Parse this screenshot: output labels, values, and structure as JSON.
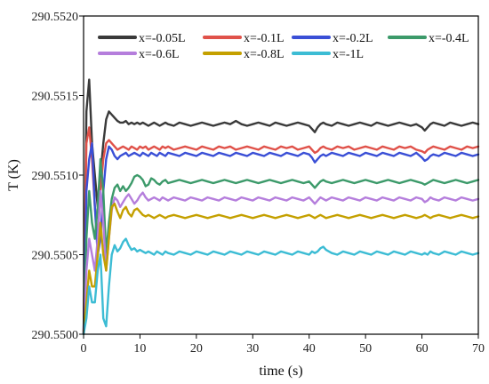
{
  "chart_data": {
    "type": "line",
    "xlabel": "time (s)",
    "ylabel": "T (K)",
    "xlim": [
      0,
      70
    ],
    "ylim": [
      290.55,
      290.552
    ],
    "x_ticks": [
      0,
      10,
      20,
      30,
      40,
      50,
      60,
      70
    ],
    "y_ticks": [
      "290.5500",
      "290.5505",
      "290.5510",
      "290.5515",
      "290.5520"
    ],
    "legend_position": "top",
    "grid": false,
    "x": [
      0,
      0.5,
      1,
      1.5,
      2,
      2.5,
      3,
      3.5,
      4,
      4.5,
      5,
      5.5,
      6,
      6.5,
      7,
      7.5,
      8,
      8.5,
      9,
      9.5,
      10,
      10.5,
      11,
      11.5,
      12,
      12.5,
      13,
      13.5,
      14,
      14.5,
      15,
      16,
      17,
      18,
      19,
      20,
      21,
      22,
      23,
      24,
      25,
      26,
      27,
      28,
      29,
      30,
      31,
      32,
      33,
      34,
      35,
      36,
      37,
      38,
      39,
      40,
      40.5,
      41,
      41.5,
      42,
      42.5,
      43,
      44,
      45,
      46,
      47,
      48,
      49,
      50,
      51,
      52,
      53,
      54,
      55,
      56,
      57,
      58,
      59,
      60,
      60.5,
      61,
      61.5,
      62,
      63,
      64,
      65,
      66,
      67,
      68,
      69,
      70
    ],
    "series": [
      {
        "name": "x=-0.05L",
        "color": "#3a3a3a",
        "values": [
          290.55,
          290.5514,
          290.5516,
          290.5512,
          290.551,
          290.5508,
          290.551,
          290.5512,
          290.55135,
          290.5514,
          290.55138,
          290.55136,
          290.55134,
          290.55133,
          290.55133,
          290.55134,
          290.55132,
          290.55133,
          290.55132,
          290.55133,
          290.55132,
          290.55133,
          290.55132,
          290.55131,
          290.55132,
          290.55133,
          290.55132,
          290.55131,
          290.55132,
          290.55133,
          290.55132,
          290.55131,
          290.55133,
          290.55132,
          290.55131,
          290.55132,
          290.55133,
          290.55132,
          290.55131,
          290.55132,
          290.55133,
          290.55132,
          290.55134,
          290.55132,
          290.55131,
          290.55132,
          290.55133,
          290.55132,
          290.55131,
          290.55133,
          290.55132,
          290.55131,
          290.55132,
          290.55133,
          290.55132,
          290.55131,
          290.55129,
          290.55127,
          290.5513,
          290.55132,
          290.55133,
          290.55132,
          290.55131,
          290.55133,
          290.55132,
          290.55131,
          290.55132,
          290.55133,
          290.55132,
          290.55131,
          290.55133,
          290.55132,
          290.55131,
          290.55132,
          290.55133,
          290.55132,
          290.55131,
          290.55132,
          290.5513,
          290.55128,
          290.5513,
          290.55132,
          290.55133,
          290.55132,
          290.55131,
          290.55133,
          290.55132,
          290.55131,
          290.55132,
          290.55133,
          290.55132
        ]
      },
      {
        "name": "x=-0.1L",
        "color": "#e0524a",
        "values": [
          290.55,
          290.5512,
          290.5513,
          290.5511,
          290.5508,
          290.5506,
          290.5509,
          290.5511,
          290.5512,
          290.55122,
          290.5512,
          290.55118,
          290.55116,
          290.55117,
          290.55118,
          290.55117,
          290.55116,
          290.55118,
          290.55117,
          290.55116,
          290.55118,
          290.55117,
          290.55118,
          290.55116,
          290.55117,
          290.55118,
          290.55117,
          290.55116,
          290.55118,
          290.55117,
          290.55118,
          290.55116,
          290.55117,
          290.55118,
          290.55117,
          290.55116,
          290.55118,
          290.55117,
          290.55116,
          290.55118,
          290.55117,
          290.55118,
          290.55116,
          290.55117,
          290.55118,
          290.55117,
          290.55116,
          290.55118,
          290.55117,
          290.55116,
          290.55118,
          290.55117,
          290.55118,
          290.55116,
          290.55117,
          290.55118,
          290.55116,
          290.55114,
          290.55115,
          290.55117,
          290.55118,
          290.55117,
          290.55116,
          290.55118,
          290.55117,
          290.55118,
          290.55116,
          290.55117,
          290.55118,
          290.55117,
          290.55116,
          290.55118,
          290.55117,
          290.55116,
          290.55118,
          290.55117,
          290.55118,
          290.55116,
          290.55115,
          290.55114,
          290.55116,
          290.55117,
          290.55118,
          290.55117,
          290.55116,
          290.55118,
          290.55117,
          290.55116,
          290.55118,
          290.55117,
          290.55118
        ]
      },
      {
        "name": "x=-0.2L",
        "color": "#3a4fd6",
        "values": [
          290.55,
          290.5509,
          290.5511,
          290.5512,
          290.5508,
          290.5505,
          290.5506,
          290.5509,
          290.5511,
          290.55118,
          290.55116,
          290.55112,
          290.5511,
          290.55112,
          290.55113,
          290.55114,
          290.55112,
          290.55113,
          290.55114,
          290.55113,
          290.55112,
          290.55114,
          290.55113,
          290.55112,
          290.55114,
          290.55113,
          290.55112,
          290.55114,
          290.55113,
          290.55112,
          290.55114,
          290.55113,
          290.55112,
          290.55114,
          290.55113,
          290.55112,
          290.55114,
          290.55113,
          290.55112,
          290.55114,
          290.55113,
          290.55112,
          290.55114,
          290.55113,
          290.55112,
          290.55114,
          290.55113,
          290.55112,
          290.55114,
          290.55113,
          290.55112,
          290.55114,
          290.55113,
          290.55112,
          290.55114,
          290.55113,
          290.55111,
          290.55108,
          290.5511,
          290.55112,
          290.55113,
          290.55112,
          290.55114,
          290.55113,
          290.55112,
          290.55114,
          290.55113,
          290.55112,
          290.55114,
          290.55113,
          290.55112,
          290.55114,
          290.55113,
          290.55112,
          290.55114,
          290.55113,
          290.55112,
          290.55114,
          290.55111,
          290.55109,
          290.5511,
          290.55112,
          290.55113,
          290.55112,
          290.55114,
          290.55113,
          290.55112,
          290.55114,
          290.55113,
          290.55112,
          290.55113
        ]
      },
      {
        "name": "x=-0.4L",
        "color": "#3c9a6a",
        "values": [
          290.55,
          290.5506,
          290.5509,
          290.5507,
          290.5506,
          290.5508,
          290.5511,
          290.5509,
          290.5505,
          290.5507,
          290.55085,
          290.55092,
          290.55094,
          290.5509,
          290.55093,
          290.5509,
          290.55092,
          290.55095,
          290.55099,
          290.551,
          290.55099,
          290.55097,
          290.55093,
          290.55094,
          290.55098,
          290.55097,
          290.55095,
          290.55094,
          290.55096,
          290.55097,
          290.55095,
          290.55096,
          290.55097,
          290.55096,
          290.55095,
          290.55096,
          290.55097,
          290.55096,
          290.55095,
          290.55096,
          290.55097,
          290.55096,
          290.55095,
          290.55096,
          290.55097,
          290.55096,
          290.55095,
          290.55096,
          290.55097,
          290.55096,
          290.55095,
          290.55096,
          290.55097,
          290.55096,
          290.55095,
          290.55096,
          290.55094,
          290.55092,
          290.55094,
          290.55096,
          290.55097,
          290.55096,
          290.55095,
          290.55096,
          290.55097,
          290.55096,
          290.55095,
          290.55096,
          290.55097,
          290.55096,
          290.55095,
          290.55096,
          290.55097,
          290.55096,
          290.55095,
          290.55096,
          290.55097,
          290.55096,
          290.55095,
          290.55094,
          290.55095,
          290.55096,
          290.55097,
          290.55096,
          290.55095,
          290.55096,
          290.55097,
          290.55096,
          290.55095,
          290.55096,
          290.55097
        ]
      },
      {
        "name": "x=-0.6L",
        "color": "#b57edc",
        "values": [
          290.55,
          290.5504,
          290.5506,
          290.5505,
          290.5504,
          290.5506,
          290.5509,
          290.5507,
          290.5504,
          290.5506,
          290.55078,
          290.55086,
          290.55084,
          290.5508,
          290.55083,
          290.55086,
          290.55088,
          290.55085,
          290.55082,
          290.55084,
          290.55087,
          290.55089,
          290.55086,
          290.55084,
          290.55085,
          290.55086,
          290.55085,
          290.55084,
          290.55086,
          290.55085,
          290.55084,
          290.55086,
          290.55085,
          290.55084,
          290.55086,
          290.55085,
          290.55084,
          290.55086,
          290.55085,
          290.55084,
          290.55086,
          290.55085,
          290.55084,
          290.55086,
          290.55085,
          290.55084,
          290.55086,
          290.55085,
          290.55084,
          290.55086,
          290.55085,
          290.55084,
          290.55086,
          290.55085,
          290.55084,
          290.55086,
          290.55084,
          290.55082,
          290.55084,
          290.55086,
          290.55085,
          290.55084,
          290.55086,
          290.55085,
          290.55084,
          290.55086,
          290.55085,
          290.55084,
          290.55086,
          290.55085,
          290.55084,
          290.55086,
          290.55085,
          290.55084,
          290.55086,
          290.55085,
          290.55084,
          290.55086,
          290.55085,
          290.55083,
          290.55084,
          290.55086,
          290.55085,
          290.55084,
          290.55086,
          290.55085,
          290.55084,
          290.55086,
          290.55085,
          290.55084,
          290.55085
        ]
      },
      {
        "name": "x=-0.8L",
        "color": "#c4a000",
        "values": [
          290.55,
          290.5502,
          290.5504,
          290.5503,
          290.5503,
          290.5505,
          290.5507,
          290.5505,
          290.5504,
          290.5506,
          290.5508,
          290.55082,
          290.55077,
          290.55073,
          290.55078,
          290.5508,
          290.55076,
          290.55074,
          290.55078,
          290.55079,
          290.55077,
          290.55075,
          290.55074,
          290.55075,
          290.55074,
          290.55073,
          290.55074,
          290.55075,
          290.55074,
          290.55073,
          290.55074,
          290.55075,
          290.55074,
          290.55073,
          290.55074,
          290.55075,
          290.55074,
          290.55073,
          290.55074,
          290.55075,
          290.55074,
          290.55073,
          290.55074,
          290.55075,
          290.55074,
          290.55073,
          290.55074,
          290.55075,
          290.55074,
          290.55073,
          290.55074,
          290.55075,
          290.55074,
          290.55073,
          290.55074,
          290.55075,
          290.55074,
          290.55073,
          290.55074,
          290.55075,
          290.55074,
          290.55073,
          290.55074,
          290.55075,
          290.55074,
          290.55073,
          290.55074,
          290.55075,
          290.55074,
          290.55073,
          290.55074,
          290.55075,
          290.55074,
          290.55073,
          290.55074,
          290.55075,
          290.55074,
          290.55073,
          290.55074,
          290.55075,
          290.55074,
          290.55073,
          290.55074,
          290.55075,
          290.55074,
          290.55073,
          290.55074,
          290.55075,
          290.55074,
          290.55073,
          290.55074
        ]
      },
      {
        "name": "x=-1L",
        "color": "#3cbcd4",
        "values": [
          290.55,
          290.5501,
          290.5503,
          290.5502,
          290.5502,
          290.5504,
          290.5505,
          290.5501,
          290.55005,
          290.5503,
          290.5505,
          290.55056,
          290.55052,
          290.55054,
          290.55058,
          290.5506,
          290.55056,
          290.55053,
          290.55054,
          290.55052,
          290.55053,
          290.55052,
          290.55051,
          290.55052,
          290.55051,
          290.5505,
          290.55052,
          290.55051,
          290.5505,
          290.55052,
          290.55051,
          290.5505,
          290.55052,
          290.55051,
          290.5505,
          290.55052,
          290.55051,
          290.5505,
          290.55052,
          290.55051,
          290.5505,
          290.55052,
          290.55051,
          290.5505,
          290.55052,
          290.55051,
          290.5505,
          290.55052,
          290.55051,
          290.5505,
          290.55052,
          290.55051,
          290.5505,
          290.55052,
          290.55051,
          290.5505,
          290.55052,
          290.55051,
          290.55052,
          290.55054,
          290.55055,
          290.55053,
          290.55051,
          290.5505,
          290.55052,
          290.55051,
          290.5505,
          290.55052,
          290.55051,
          290.5505,
          290.55052,
          290.55051,
          290.5505,
          290.55052,
          290.55051,
          290.5505,
          290.55052,
          290.55051,
          290.5505,
          290.55051,
          290.5505,
          290.55052,
          290.55051,
          290.5505,
          290.55052,
          290.55051,
          290.5505,
          290.55052,
          290.55051,
          290.5505,
          290.55051
        ]
      }
    ]
  }
}
